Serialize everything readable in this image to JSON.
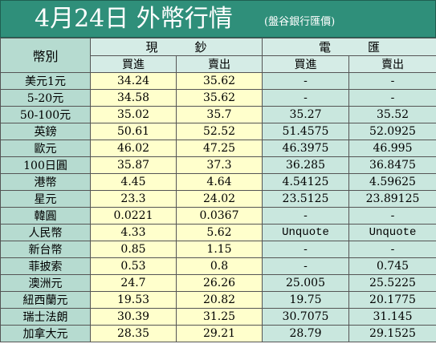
{
  "title": {
    "main": "4月24日 外幣行情",
    "sub": "(盤谷銀行匯價)"
  },
  "header": {
    "currency_label": "幣別",
    "cash_group": [
      "現",
      "鈔"
    ],
    "wire_group": [
      "電",
      "匯"
    ],
    "buy": "買進",
    "sell": "賣出"
  },
  "rows": [
    {
      "currency": "美元1元",
      "cash_buy": "34.24",
      "cash_sell": "35.62",
      "wire_buy": "-",
      "wire_sell": "-"
    },
    {
      "currency": "5-20元",
      "cash_buy": "34.58",
      "cash_sell": "35.62",
      "wire_buy": "-",
      "wire_sell": "-"
    },
    {
      "currency": "50-100元",
      "cash_buy": "35.02",
      "cash_sell": "35.7",
      "wire_buy": "35.27",
      "wire_sell": "35.52"
    },
    {
      "currency": "英鎊",
      "cash_buy": "50.61",
      "cash_sell": "52.52",
      "wire_buy": "51.4575",
      "wire_sell": "52.0925"
    },
    {
      "currency": "歐元",
      "cash_buy": "46.02",
      "cash_sell": "47.25",
      "wire_buy": "46.3975",
      "wire_sell": "46.995"
    },
    {
      "currency": "100日圓",
      "cash_buy": "35.87",
      "cash_sell": "37.3",
      "wire_buy": "36.285",
      "wire_sell": "36.8475"
    },
    {
      "currency": "港幣",
      "cash_buy": "4.45",
      "cash_sell": "4.64",
      "wire_buy": "4.54125",
      "wire_sell": "4.59625"
    },
    {
      "currency": "星元",
      "cash_buy": "23.3",
      "cash_sell": "24.02",
      "wire_buy": "23.5125",
      "wire_sell": "23.89125"
    },
    {
      "currency": "韓圓",
      "cash_buy": "0.0221",
      "cash_sell": "0.0367",
      "wire_buy": "-",
      "wire_sell": "-"
    },
    {
      "currency": "人民幣",
      "cash_buy": "4.33",
      "cash_sell": "5.62",
      "wire_buy": "Unquote",
      "wire_sell": "Unquote"
    },
    {
      "currency": "新台幣",
      "cash_buy": "0.85",
      "cash_sell": "1.15",
      "wire_buy": "-",
      "wire_sell": "-"
    },
    {
      "currency": "菲披索",
      "cash_buy": "0.53",
      "cash_sell": "0.8",
      "wire_buy": "-",
      "wire_sell": "0.745"
    },
    {
      "currency": "澳洲元",
      "cash_buy": "24.7",
      "cash_sell": "26.26",
      "wire_buy": "25.005",
      "wire_sell": "25.5225"
    },
    {
      "currency": "紐西蘭元",
      "cash_buy": "19.53",
      "cash_sell": "20.82",
      "wire_buy": "19.75",
      "wire_sell": "20.1775"
    },
    {
      "currency": "瑞士法朗",
      "cash_buy": "30.39",
      "cash_sell": "31.25",
      "wire_buy": "30.7075",
      "wire_sell": "31.145"
    },
    {
      "currency": "加拿大元",
      "cash_buy": "28.35",
      "cash_sell": "29.21",
      "wire_buy": "28.79",
      "wire_sell": "29.1525"
    }
  ],
  "colors": {
    "title_bg": "#2f8f7a",
    "label_col": "#b6dbd0",
    "cash_col": "#ffffcc",
    "wire_col": "#c9e7de"
  }
}
